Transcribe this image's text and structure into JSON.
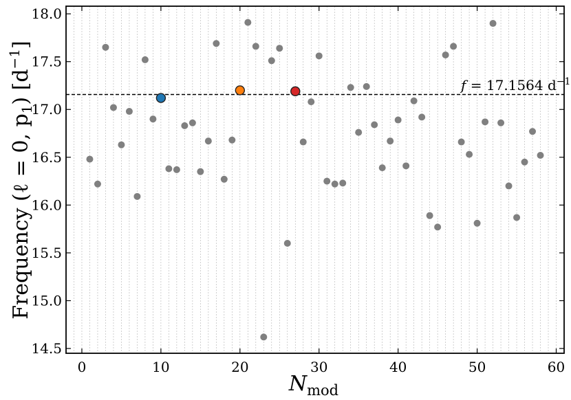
{
  "chart_data": {
    "type": "scatter",
    "xlabel_main": "N",
    "xlabel_sub": "mod",
    "ylabel_main": "Frequency (ℓ = 0, p",
    "ylabel_sub": "1",
    "ylabel_unit": ") [d",
    "ylabel_sup": "−1",
    "ylabel_end": "]",
    "xlim": [
      -2,
      61
    ],
    "ylim": [
      14.45,
      18.08
    ],
    "xticks": [
      0,
      10,
      20,
      30,
      40,
      50,
      60
    ],
    "yticks": [
      14.5,
      15.0,
      15.5,
      16.0,
      16.5,
      17.0,
      17.5,
      18.0
    ],
    "xtick_labels": [
      "0",
      "10",
      "20",
      "30",
      "40",
      "50",
      "60"
    ],
    "ytick_labels": [
      "14.5",
      "15.0",
      "15.5",
      "16.0",
      "16.5",
      "17.0",
      "17.5",
      "18.0"
    ],
    "grid": "vertical dashed lines at each integer N_mod",
    "reference_line": {
      "y": 17.1564,
      "label_italic": "f",
      "label_text": " = 17.1564 d",
      "label_sup": "−1"
    },
    "series": [
      {
        "color": "#808080",
        "x": [
          1,
          2,
          3,
          4,
          5,
          6,
          7,
          8,
          9,
          11,
          12,
          13,
          14,
          15,
          16,
          17,
          18,
          19,
          21,
          22,
          23,
          24,
          25,
          26,
          28,
          29,
          30,
          31,
          32,
          33,
          34,
          35,
          36,
          37,
          38,
          39,
          40,
          41,
          42,
          43,
          44,
          45,
          46,
          47,
          48,
          49,
          50,
          51,
          52,
          53,
          54,
          55,
          56,
          57,
          58
        ],
        "y": [
          16.48,
          16.22,
          17.65,
          17.02,
          16.63,
          16.98,
          16.09,
          17.52,
          16.9,
          16.38,
          16.37,
          16.83,
          16.86,
          16.35,
          16.67,
          17.69,
          16.27,
          16.68,
          17.91,
          17.66,
          14.62,
          17.51,
          17.64,
          15.6,
          16.66,
          17.08,
          17.56,
          16.25,
          16.22,
          16.23,
          17.23,
          16.76,
          17.24,
          16.84,
          16.39,
          16.67,
          16.89,
          16.41,
          17.09,
          16.92,
          15.89,
          15.77,
          17.57,
          17.66,
          16.66,
          16.53,
          15.81,
          16.87,
          17.9,
          16.86,
          16.2,
          15.87,
          16.45,
          16.77,
          16.52
        ]
      },
      {
        "color": "#1f77b4",
        "x": [
          10
        ],
        "y": [
          17.12
        ]
      },
      {
        "color": "#ff7f0e",
        "x": [
          20
        ],
        "y": [
          17.2
        ]
      },
      {
        "color": "#d62728",
        "x": [
          27
        ],
        "y": [
          17.19
        ]
      }
    ]
  }
}
